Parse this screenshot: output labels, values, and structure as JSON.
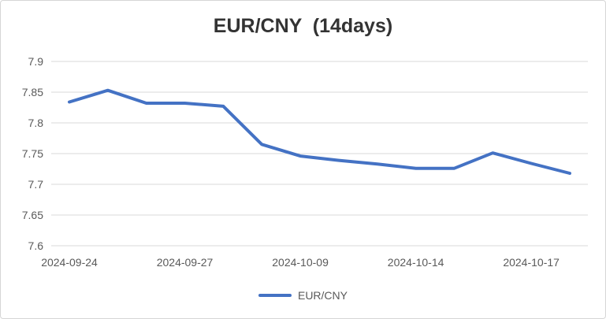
{
  "chart_data": {
    "type": "line",
    "title": "EUR/CNY  (14days)",
    "xlabel": "",
    "ylabel": "",
    "x": [
      "2024-09-24",
      "",
      "",
      "2024-09-27",
      "",
      "",
      "2024-10-09",
      "",
      "",
      "2024-10-14",
      "",
      "",
      "2024-10-17",
      ""
    ],
    "x_tick_labels": [
      "2024-09-24",
      "2024-09-27",
      "2024-10-09",
      "2024-10-14",
      "2024-10-17"
    ],
    "y_tick_labels": [
      "7.9",
      "7.85",
      "7.8",
      "7.75",
      "7.7",
      "7.65",
      "7.6"
    ],
    "ylim": [
      7.6,
      7.9
    ],
    "grid": true,
    "legend_position": "bottom",
    "series": [
      {
        "name": "EUR/CNY",
        "color": "#4472c4",
        "values": [
          7.834,
          7.853,
          7.832,
          7.832,
          7.827,
          7.765,
          7.746,
          7.739,
          7.733,
          7.726,
          7.726,
          7.751,
          7.734,
          7.718
        ]
      }
    ]
  }
}
